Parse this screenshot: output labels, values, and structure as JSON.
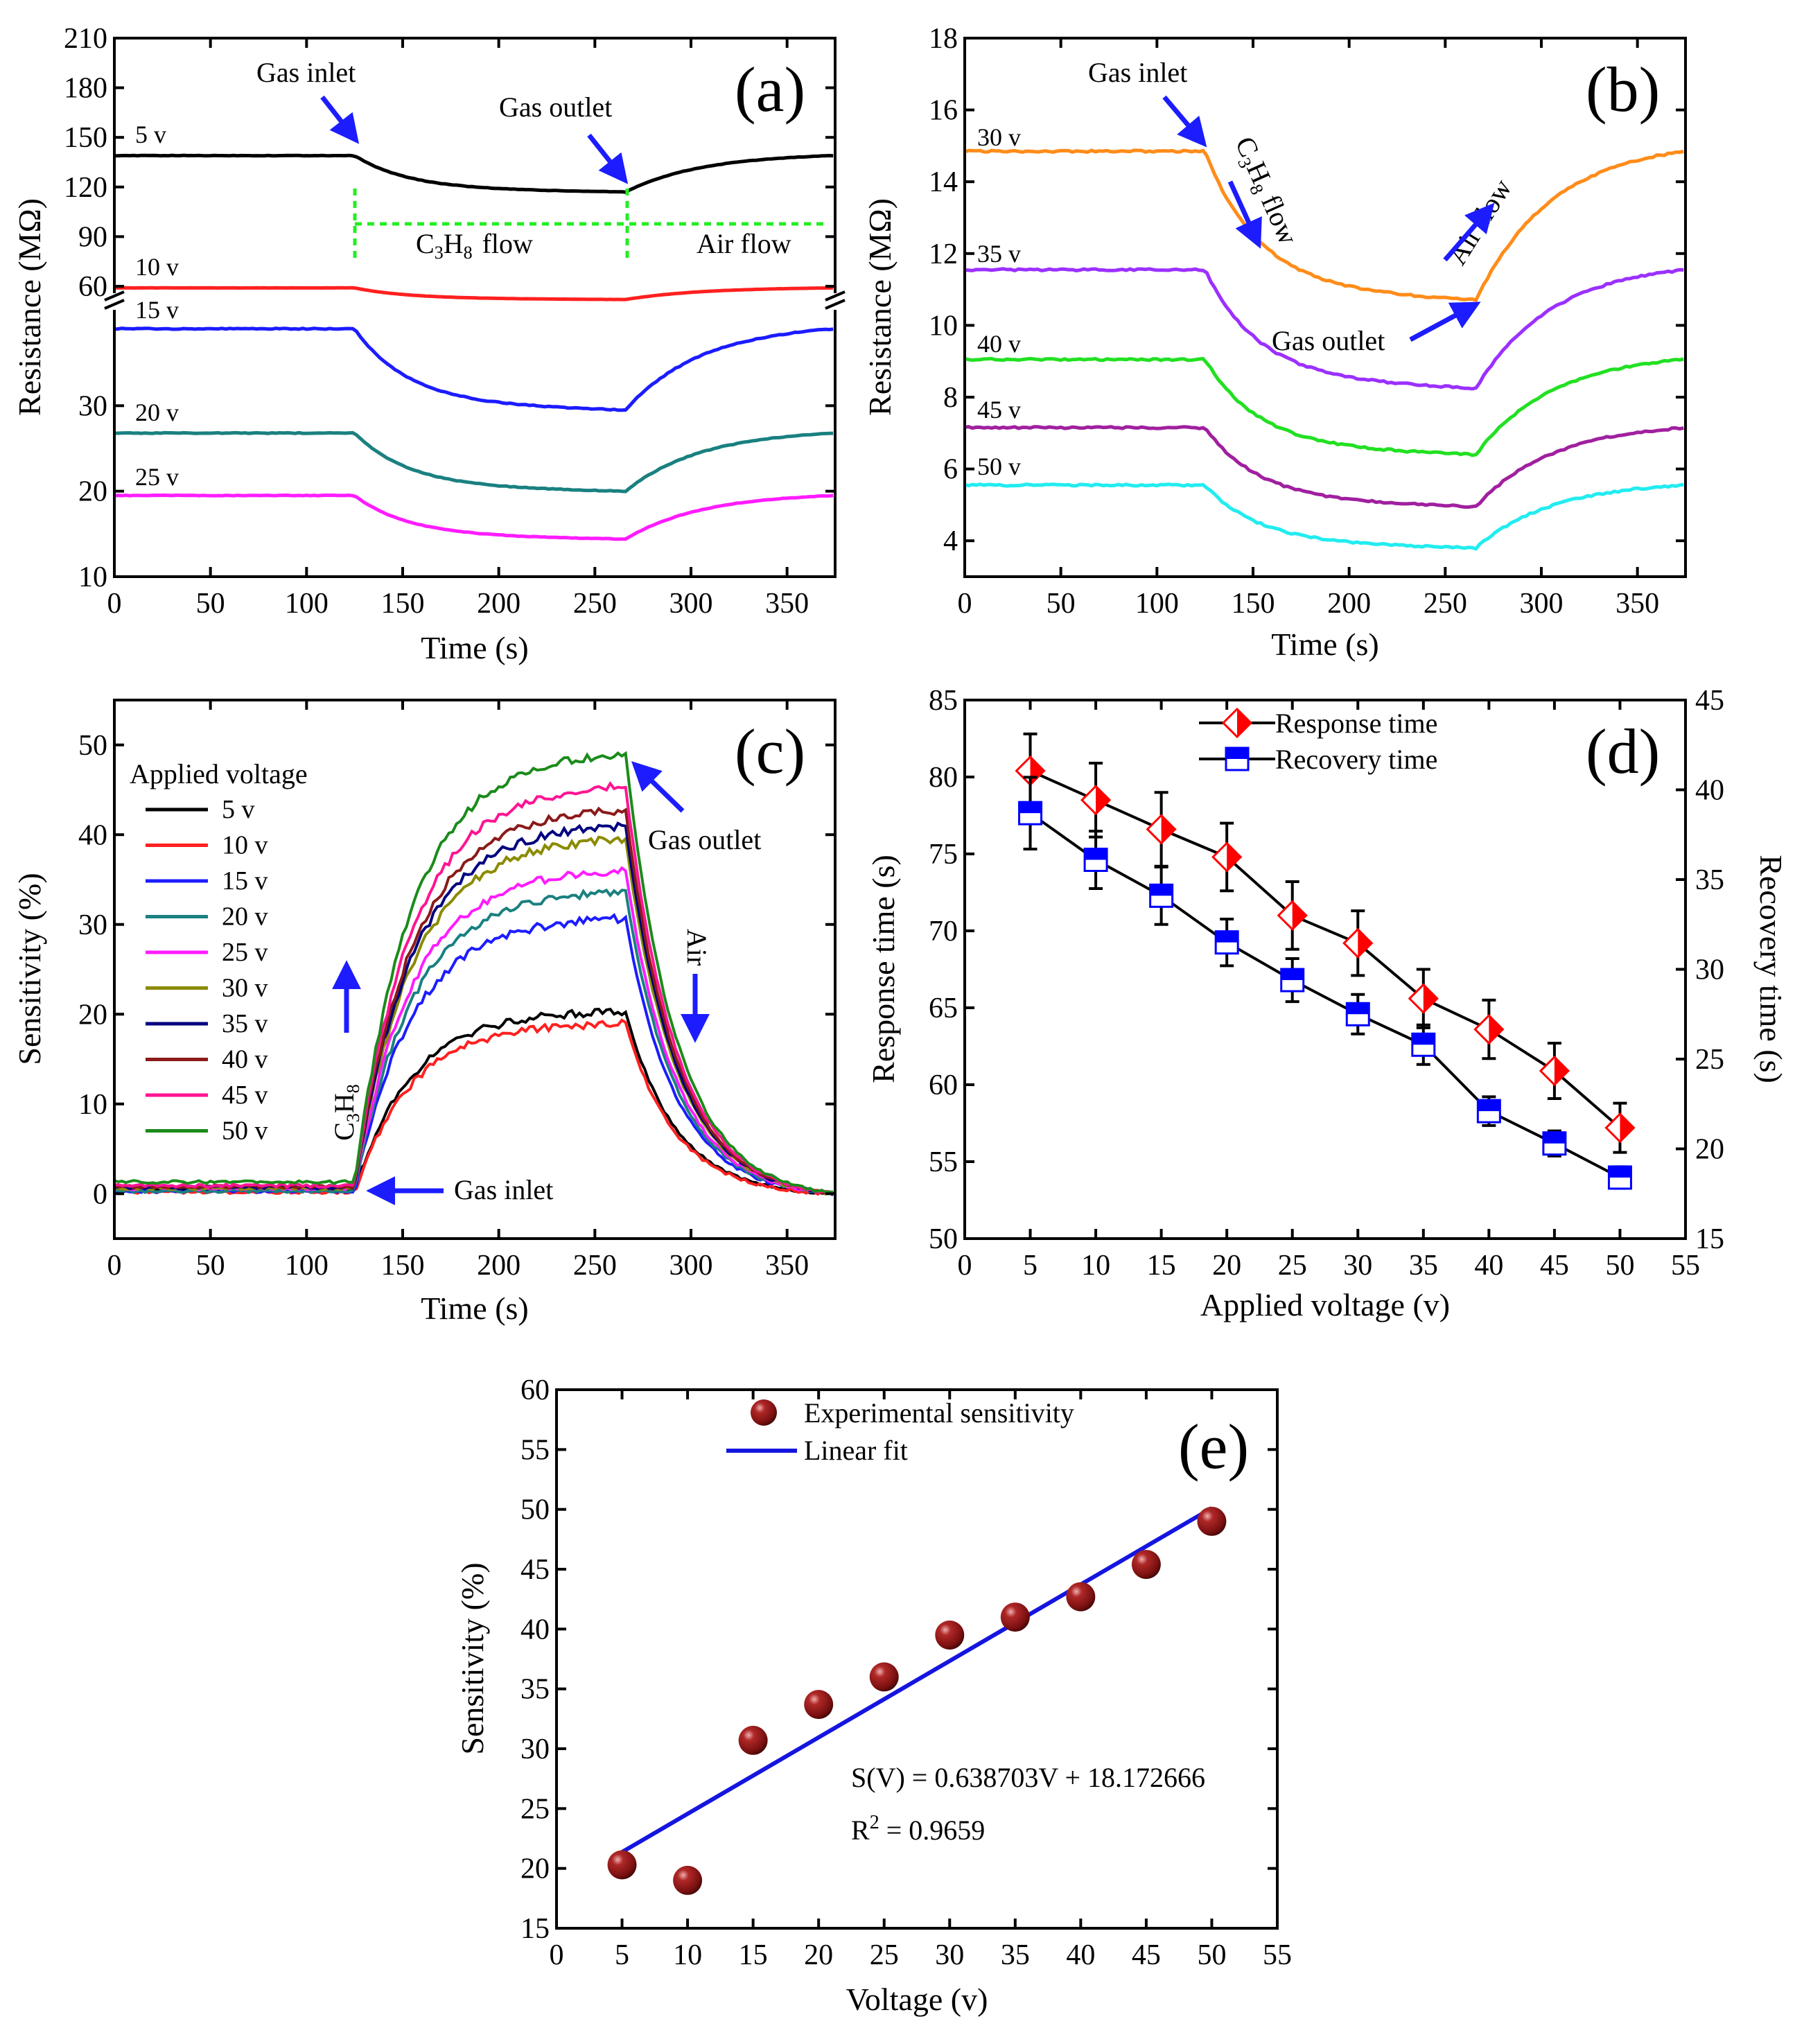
{
  "chart_data": [
    {
      "panel": "a",
      "label": "(a)",
      "type": "line",
      "xlabel": "Time (s)",
      "ylabel": "Resistance (MΩ)",
      "xlim": [
        0,
        375
      ],
      "xticks": [
        0,
        50,
        100,
        150,
        200,
        250,
        300,
        350
      ],
      "yticks_upper": [
        60,
        90,
        120,
        150,
        180,
        210
      ],
      "yticks_lower": [
        10,
        20,
        30
      ],
      "axis_break": "between 60 and ~40 (broken y-axis)",
      "profile": {
        "inlet_s": 125,
        "outlet_s": 266
      },
      "series": [
        {
          "name": "5 v",
          "label": "5 v",
          "color": "#000000",
          "baseline": 139,
          "minimum": 117
        },
        {
          "name": "10 v",
          "label": "10 v",
          "color": "#ff2020",
          "baseline": 59,
          "minimum": 52
        },
        {
          "name": "15 v",
          "label": "15 v",
          "color": "#1c1cff",
          "baseline": 39,
          "minimum": 29.5
        },
        {
          "name": "20 v",
          "label": "20 v",
          "color": "#1a8080",
          "baseline": 26.8,
          "minimum": 20
        },
        {
          "name": "25 v",
          "label": "25 v",
          "color": "#ff1cff",
          "baseline": 19.5,
          "minimum": 14.4
        }
      ],
      "annotations": {
        "gas_inlet": "Gas inlet",
        "gas_outlet": "Gas outlet",
        "flow_gas_pre": "C",
        "flow_gas_sub1": "3",
        "flow_gas_mid": "H",
        "flow_gas_sub2": "8",
        "flow_gas_post": "flow",
        "air_flow": "Air flow"
      }
    },
    {
      "panel": "b",
      "label": "(b)",
      "type": "line",
      "xlabel": "Time (s)",
      "ylabel": "Resistance (MΩ)",
      "xlim": [
        0,
        375
      ],
      "ylim": [
        3,
        18
      ],
      "xticks": [
        0,
        50,
        100,
        150,
        200,
        250,
        300,
        350
      ],
      "yticks": [
        4,
        6,
        8,
        10,
        12,
        14,
        16,
        18
      ],
      "profile": {
        "inlet_s": 125,
        "outlet_s": 266
      },
      "series": [
        {
          "name": "30 v",
          "label": "30 v",
          "color": "#ff8c1a",
          "baseline": 14.85,
          "minimum": 10.7
        },
        {
          "name": "35 v",
          "label": "35 v",
          "color": "#9b30ff",
          "baseline": 11.55,
          "minimum": 8.25
        },
        {
          "name": "40 v",
          "label": "40 v",
          "color": "#22e022",
          "baseline": 9.05,
          "minimum": 6.4
        },
        {
          "name": "45 v",
          "label": "45 v",
          "color": "#a0209f",
          "baseline": 7.15,
          "minimum": 4.95
        },
        {
          "name": "50 v",
          "label": "50 v",
          "color": "#22ecf0",
          "baseline": 5.55,
          "minimum": 3.8
        }
      ],
      "annotations": {
        "gas_inlet": "Gas inlet",
        "gas_outlet": "Gas outlet",
        "flow_gas_pre": "C",
        "flow_gas_sub1": "3",
        "flow_gas_mid": "H",
        "flow_gas_sub2": "8",
        "flow_gas_post": "flow",
        "air_flow": "Air flow"
      }
    },
    {
      "panel": "c",
      "label": "(c)",
      "type": "line",
      "xlabel": "Time (s)",
      "ylabel": "Sensitivity (%)",
      "xlim": [
        0,
        375
      ],
      "ylim": [
        -5,
        55
      ],
      "xticks": [
        0,
        50,
        100,
        150,
        200,
        250,
        300,
        350
      ],
      "yticks": [
        0,
        10,
        20,
        30,
        40,
        50
      ],
      "legend_title": "Applied voltage",
      "legend_position": "top-left",
      "profile": {
        "inlet_s": 125,
        "outlet_s": 266
      },
      "series": [
        {
          "name": "5 v",
          "color": "#000000",
          "baseline": 0.5,
          "peak": 20.3
        },
        {
          "name": "10 v",
          "color": "#ff2020",
          "baseline": 0.2,
          "peak": 19
        },
        {
          "name": "15 v",
          "color": "#1c1cff",
          "baseline": 0.3,
          "peak": 30.7
        },
        {
          "name": "20 v",
          "color": "#1a8080",
          "baseline": 0.3,
          "peak": 33.7
        },
        {
          "name": "25 v",
          "color": "#ff1cff",
          "baseline": 0.6,
          "peak": 36
        },
        {
          "name": "30 v",
          "color": "#8b8b00",
          "baseline": 0.6,
          "peak": 39.5
        },
        {
          "name": "35 v",
          "color": "#000080",
          "baseline": 0.7,
          "peak": 41
        },
        {
          "name": "40 v",
          "color": "#8b1a1a",
          "baseline": 0.8,
          "peak": 42.7
        },
        {
          "name": "45 v",
          "color": "#ff1493",
          "baseline": 0.9,
          "peak": 45.4
        },
        {
          "name": "50 v",
          "color": "#1a8b1a",
          "baseline": 1.3,
          "peak": 49
        }
      ],
      "annotations": {
        "gas_inlet": "Gas inlet",
        "gas_outlet": "Gas outlet",
        "air": "Air",
        "c3h8_pre": "C",
        "c3h8_sub1": "3",
        "c3h8_mid": "H",
        "c3h8_sub2": "8"
      }
    },
    {
      "panel": "d",
      "label": "(d)",
      "type": "scatter",
      "xlabel": "Applied voltage (v)",
      "ylabel": "Response time (s)",
      "ylabel_right": "Recovery time (s)",
      "xlim": [
        0,
        55
      ],
      "ylim": [
        50,
        85
      ],
      "ylim_right": [
        15,
        45
      ],
      "xticks": [
        0,
        5,
        10,
        15,
        20,
        25,
        30,
        35,
        40,
        45,
        50,
        55
      ],
      "yticks": [
        50,
        55,
        60,
        65,
        70,
        75,
        80,
        85
      ],
      "yticks_right": [
        15,
        20,
        25,
        30,
        35,
        40,
        45
      ],
      "x": [
        5,
        10,
        15,
        20,
        25,
        30,
        35,
        40,
        45,
        50
      ],
      "series": [
        {
          "name": "Response time",
          "axis": "left",
          "marker": "half-filled diamond",
          "color": "#ff0000",
          "values": [
            80.4,
            78.5,
            76.6,
            74.8,
            71,
            69.2,
            65.6,
            63.6,
            60.9,
            57.2
          ],
          "error": [
            2.4,
            2.4,
            2.4,
            2.2,
            2.2,
            2.1,
            1.9,
            1.9,
            1.8,
            1.6
          ]
        },
        {
          "name": "Recovery time",
          "axis": "right",
          "marker": "half-filled square",
          "color": "#0000ff",
          "values": [
            38.7,
            36.1,
            34.1,
            31.5,
            29.4,
            27.5,
            25.8,
            22.1,
            20.3,
            18.4
          ],
          "error": [
            2,
            1.6,
            1.6,
            1.3,
            1.2,
            1.1,
            1.1,
            0.8,
            0.7,
            0.6
          ]
        }
      ],
      "legend_position": "top-center"
    },
    {
      "panel": "e",
      "label": "(e)",
      "type": "scatter",
      "xlabel": "Voltage (v)",
      "ylabel": "Sensitivity (%)",
      "xlim": [
        0,
        55
      ],
      "ylim": [
        15,
        60
      ],
      "xticks": [
        0,
        5,
        10,
        15,
        20,
        25,
        30,
        35,
        40,
        45,
        50,
        55
      ],
      "yticks": [
        15,
        20,
        25,
        30,
        35,
        40,
        45,
        50,
        55,
        60
      ],
      "x": [
        5,
        10,
        15,
        20,
        25,
        30,
        35,
        40,
        45,
        50
      ],
      "series": [
        {
          "name": "Experimental sensitivity",
          "marker": "sphere",
          "color": "#7a1010",
          "values": [
            20.3,
            19,
            30.7,
            33.7,
            36,
            39.5,
            41,
            42.7,
            45.4,
            49
          ]
        }
      ],
      "fit": {
        "name": "Linear fit",
        "color": "#1515e0",
        "slope": 0.638703,
        "intercept": 18.172666,
        "x_range": [
          5,
          50
        ]
      },
      "equation": "S(V) = 0.638703V + 18.172666",
      "r2_pre": "R",
      "r2_sup": "2",
      "r2_post": " = 0.9659",
      "legend_position": "top-center"
    }
  ]
}
